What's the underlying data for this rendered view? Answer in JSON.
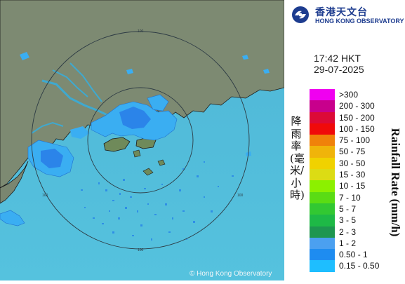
{
  "logo": {
    "name_zh": "香港天文台",
    "name_en": "HONG KONG OBSERVATORY"
  },
  "timestamp": {
    "time": "17:42 HKT",
    "date": "29-07-2025"
  },
  "legend": {
    "title_zh": "降雨率(毫米/小時)",
    "title_en": "Rainfall Rate (mm/h)",
    "bins": [
      {
        "label": ">300",
        "color": "#f000f0"
      },
      {
        "label": "200 - 300",
        "color": "#c8008c"
      },
      {
        "label": "150 - 200",
        "color": "#dc0a37"
      },
      {
        "label": "100 - 150",
        "color": "#f00a0a"
      },
      {
        "label": "75 - 100",
        "color": "#f0820a"
      },
      {
        "label": "50 - 75",
        "color": "#f0b40a"
      },
      {
        "label": "30 - 50",
        "color": "#f0d200"
      },
      {
        "label": "15 - 30",
        "color": "#dcdc14"
      },
      {
        "label": "10 - 15",
        "color": "#8cf000"
      },
      {
        "label": "7 - 10",
        "color": "#5adc14"
      },
      {
        "label": "5 - 7",
        "color": "#32c832"
      },
      {
        "label": "3 - 5",
        "color": "#1eb946"
      },
      {
        "label": "2 - 3",
        "color": "#1e9650"
      },
      {
        "label": "1 - 2",
        "color": "#4ba0f0"
      },
      {
        "label": "0.50 - 1",
        "color": "#1e8cf0"
      },
      {
        "label": "0.15 - 0.50",
        "color": "#1ebeff"
      }
    ]
  },
  "map": {
    "range_ring_label": "100",
    "copyright": "© Hong Kong Observatory",
    "colors": {
      "sea": "#5bbfdc",
      "land": "#7e8b73",
      "rain_light": "#3ab0f0",
      "rain_moderate": "#2a7fe8",
      "coastline": "#1a1a1a",
      "ring": "#2d3b44"
    }
  }
}
